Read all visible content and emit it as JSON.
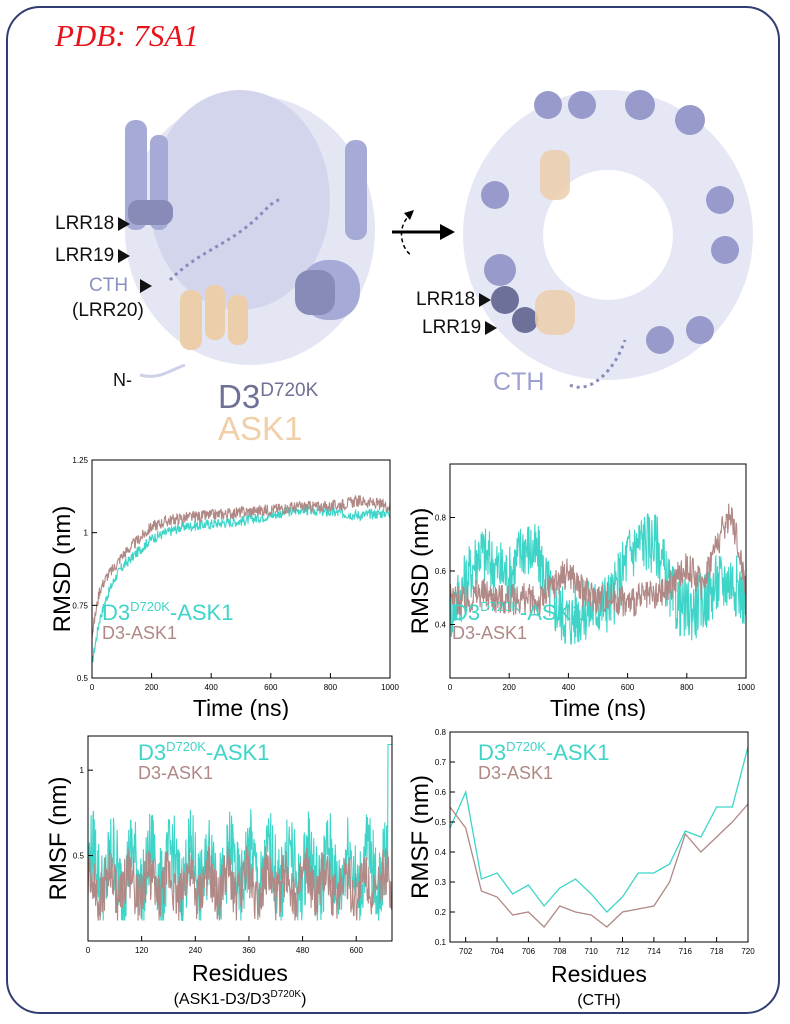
{
  "header": {
    "pdb_label": "PDB: 7SA1"
  },
  "structure": {
    "left_labels": [
      "LRR18",
      "LRR19"
    ],
    "left_cth": "CTH",
    "left_cth_sub": "(LRR20)",
    "n_term": "N-",
    "d3_base": "D3",
    "d3_sup": "D720K",
    "ask1": "ASK1",
    "right_labels": [
      "LRR18",
      "LRR19"
    ],
    "right_cth": "CTH",
    "colors": {
      "d3": "#6e7094",
      "ask1": "#f0cfa9",
      "protein": "#a7abd9"
    }
  },
  "chart_data": [
    {
      "type": "line",
      "ylabel": "RMSD (nm)",
      "xlabel": "Time (ns)",
      "xlim": [
        0,
        1000
      ],
      "ylim": [
        0.5,
        1.25
      ],
      "xticks": [
        0,
        200,
        400,
        600,
        800,
        1000
      ],
      "yticks": [
        0.5,
        0.75,
        1,
        1.25
      ],
      "ytick_labels": [
        "0.5",
        "0.75",
        "1",
        "1.25"
      ],
      "series": [
        {
          "name": "D3^D720K-ASK1",
          "color": "#3ed5c8",
          "x": [
            0,
            25,
            50,
            75,
            100,
            150,
            200,
            250,
            300,
            400,
            500,
            600,
            700,
            800,
            900,
            1000
          ],
          "values": [
            0.55,
            0.7,
            0.78,
            0.84,
            0.88,
            0.93,
            0.98,
            1.0,
            1.02,
            1.03,
            1.04,
            1.06,
            1.08,
            1.07,
            1.06,
            1.07
          ]
        },
        {
          "name": "D3-ASK1",
          "color": "#b08885",
          "x": [
            0,
            25,
            50,
            75,
            100,
            150,
            200,
            250,
            300,
            400,
            500,
            600,
            700,
            800,
            900,
            1000
          ],
          "values": [
            0.65,
            0.8,
            0.85,
            0.88,
            0.92,
            0.97,
            1.02,
            1.04,
            1.05,
            1.06,
            1.07,
            1.08,
            1.09,
            1.09,
            1.11,
            1.09
          ]
        }
      ]
    },
    {
      "type": "line",
      "ylabel": "RMSD (nm)",
      "xlabel": "Time (ns)",
      "xlim": [
        0,
        1000
      ],
      "ylim": [
        0.2,
        1.0
      ],
      "xticks": [
        0,
        200,
        400,
        600,
        800,
        1000
      ],
      "yticks": [
        0.4,
        0.6,
        0.8
      ],
      "ytick_labels": [
        "0.4",
        "0.6",
        "0.8"
      ],
      "series": [
        {
          "name": "D3^D720K-ASK1",
          "color": "#3ed5c8",
          "x": [
            0,
            50,
            100,
            150,
            200,
            250,
            300,
            350,
            400,
            450,
            500,
            550,
            600,
            650,
            700,
            750,
            800,
            850,
            900,
            950,
            1000
          ],
          "values": [
            0.45,
            0.55,
            0.68,
            0.62,
            0.58,
            0.7,
            0.65,
            0.48,
            0.42,
            0.45,
            0.47,
            0.5,
            0.66,
            0.72,
            0.7,
            0.5,
            0.45,
            0.48,
            0.55,
            0.57,
            0.5
          ]
        },
        {
          "name": "D3-ASK1",
          "color": "#b08885",
          "x": [
            0,
            50,
            100,
            150,
            200,
            250,
            300,
            350,
            400,
            450,
            500,
            550,
            600,
            650,
            700,
            750,
            800,
            850,
            900,
            950,
            1000
          ],
          "values": [
            0.5,
            0.48,
            0.52,
            0.5,
            0.49,
            0.5,
            0.48,
            0.55,
            0.6,
            0.52,
            0.5,
            0.5,
            0.48,
            0.5,
            0.5,
            0.55,
            0.62,
            0.55,
            0.7,
            0.82,
            0.55
          ]
        }
      ]
    },
    {
      "type": "line",
      "ylabel": "RMSF (nm)",
      "xlabel": "Residues",
      "xlabel_sub": "(ASK1-D3/D3^D720K)",
      "xlim": [
        0,
        680
      ],
      "ylim": [
        0,
        1.2
      ],
      "xticks": [
        0,
        120,
        240,
        360,
        480,
        600
      ],
      "yticks": [
        0.5,
        1
      ],
      "ytick_labels": [
        "0.5",
        "1"
      ],
      "series": [
        {
          "name": "D3^D720K-ASK1",
          "color": "#3ed5c8",
          "summary": "fluctuating between ~0.2 and ~0.9 nm, spike to ~1.15 at residue 680"
        },
        {
          "name": "D3-ASK1",
          "color": "#b08885",
          "summary": "fluctuating between ~0.15 and ~0.7 nm"
        }
      ]
    },
    {
      "type": "line",
      "ylabel": "RMSF (nm)",
      "xlabel": "Residues",
      "xlabel_sub": "(CTH)",
      "xlim": [
        701,
        720
      ],
      "ylim": [
        0.1,
        0.8
      ],
      "xticks": [
        702,
        704,
        706,
        708,
        710,
        712,
        714,
        716,
        718,
        720
      ],
      "yticks": [
        0.1,
        0.2,
        0.3,
        0.4,
        0.5,
        0.6,
        0.7,
        0.8
      ],
      "ytick_labels": [
        "0.1",
        "0.2",
        "0.3",
        "0.4",
        "0.5",
        "0.6",
        "0.7",
        "0.8"
      ],
      "series": [
        {
          "name": "D3^D720K-ASK1",
          "color": "#3ed5c8",
          "x": [
            701,
            702,
            703,
            704,
            705,
            706,
            707,
            708,
            709,
            710,
            711,
            712,
            713,
            714,
            715,
            716,
            717,
            718,
            719,
            720
          ],
          "values": [
            0.48,
            0.6,
            0.31,
            0.33,
            0.26,
            0.29,
            0.22,
            0.28,
            0.31,
            0.26,
            0.2,
            0.25,
            0.33,
            0.33,
            0.36,
            0.47,
            0.45,
            0.55,
            0.55,
            0.75
          ]
        },
        {
          "name": "D3-ASK1",
          "color": "#b08885",
          "x": [
            701,
            702,
            703,
            704,
            705,
            706,
            707,
            708,
            709,
            710,
            711,
            712,
            713,
            714,
            715,
            716,
            717,
            718,
            719,
            720
          ],
          "values": [
            0.55,
            0.48,
            0.27,
            0.25,
            0.19,
            0.2,
            0.15,
            0.22,
            0.2,
            0.19,
            0.15,
            0.2,
            0.21,
            0.22,
            0.3,
            0.46,
            0.4,
            0.45,
            0.5,
            0.56
          ]
        }
      ]
    }
  ],
  "legends": {
    "mut_base": "D3",
    "mut_sup": "D720K",
    "mut_suffix": "-ASK1",
    "wt": "D3-ASK1"
  }
}
